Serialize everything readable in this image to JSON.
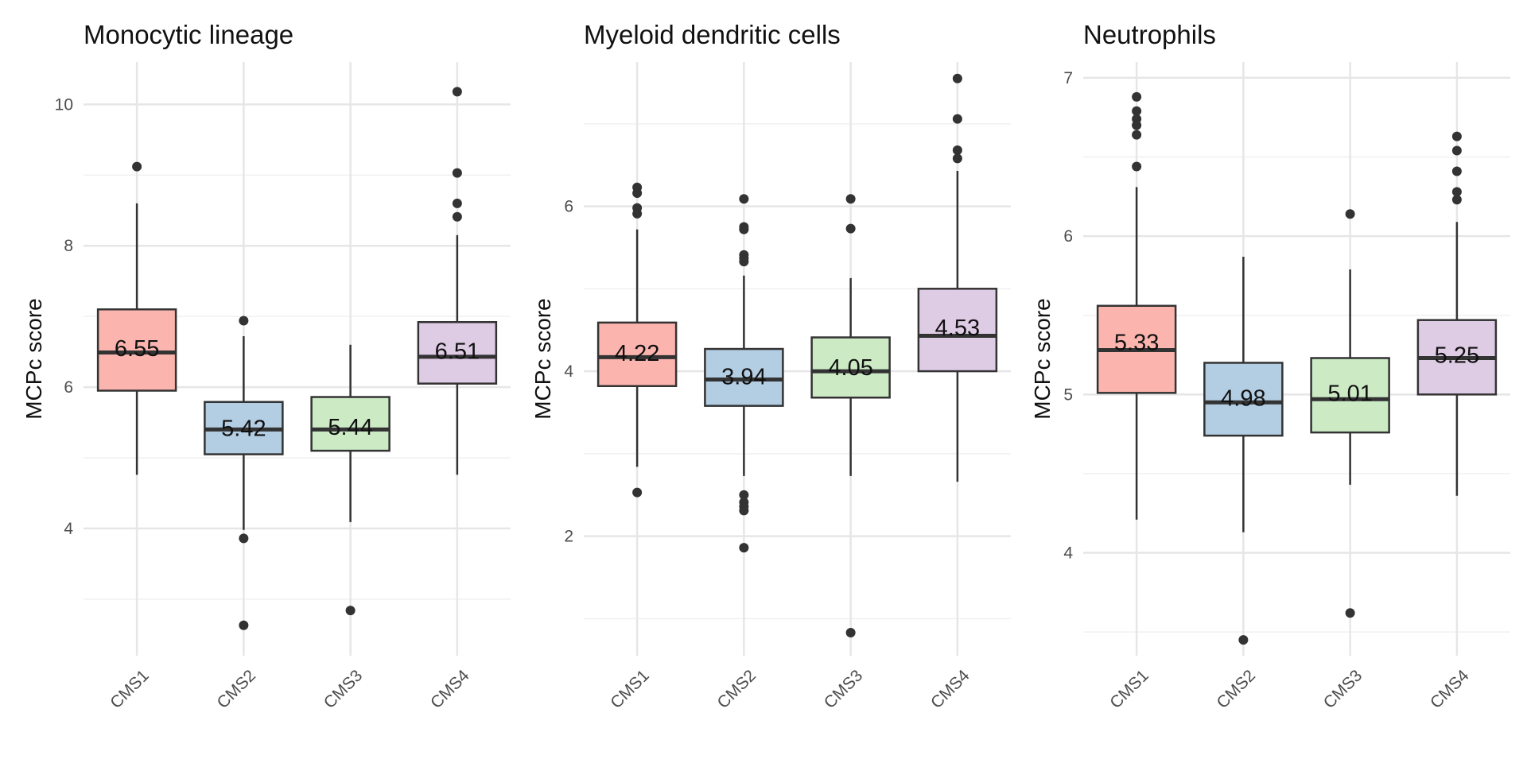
{
  "chart_data": [
    {
      "type": "box",
      "title": "Monocytic lineage",
      "ylabel": "MCPc score",
      "categories": [
        "CMS1",
        "CMS2",
        "CMS3",
        "CMS4"
      ],
      "ylim": [
        2.2,
        10.6
      ],
      "yticks": [
        4,
        6,
        8,
        10
      ],
      "boxes": [
        {
          "category": "CMS1",
          "color": "#FBB4AE",
          "label": "6.55",
          "label_y": 6.55,
          "q1": 5.95,
          "median": 6.49,
          "q3": 7.1,
          "whisker_low": 4.76,
          "whisker_high": 8.6,
          "outliers": [
            9.12
          ]
        },
        {
          "category": "CMS2",
          "color": "#B3CDE3",
          "label": "5.42",
          "label_y": 5.42,
          "q1": 5.05,
          "median": 5.4,
          "q3": 5.79,
          "whisker_low": 3.98,
          "whisker_high": 6.72,
          "outliers": [
            6.94,
            3.86,
            2.63
          ]
        },
        {
          "category": "CMS3",
          "color": "#CCEBC5",
          "label": "5.44",
          "label_y": 5.44,
          "q1": 5.1,
          "median": 5.4,
          "q3": 5.86,
          "whisker_low": 4.09,
          "whisker_high": 6.6,
          "outliers": [
            2.84
          ]
        },
        {
          "category": "CMS4",
          "color": "#DECBE4",
          "label": "6.51",
          "label_y": 6.51,
          "q1": 6.05,
          "median": 6.43,
          "q3": 6.92,
          "whisker_low": 4.76,
          "whisker_high": 8.15,
          "outliers": [
            10.18,
            9.03,
            8.6,
            8.41
          ]
        }
      ]
    },
    {
      "type": "box",
      "title": "Myeloid dendritic cells",
      "ylabel": "MCPc score",
      "categories": [
        "CMS1",
        "CMS2",
        "CMS3",
        "CMS4"
      ],
      "ylim": [
        0.55,
        7.75
      ],
      "yticks": [
        2,
        4,
        6
      ],
      "boxes": [
        {
          "category": "CMS1",
          "color": "#FBB4AE",
          "label": "4.22",
          "label_y": 4.22,
          "q1": 3.82,
          "median": 4.17,
          "q3": 4.59,
          "whisker_low": 2.84,
          "whisker_high": 5.72,
          "outliers": [
            6.23,
            6.16,
            5.98,
            5.91,
            2.53
          ]
        },
        {
          "category": "CMS2",
          "color": "#B3CDE3",
          "label": "3.94",
          "label_y": 3.94,
          "q1": 3.58,
          "median": 3.9,
          "q3": 4.27,
          "whisker_low": 2.73,
          "whisker_high": 5.16,
          "outliers": [
            6.09,
            5.75,
            5.72,
            5.41,
            5.37,
            5.33,
            2.5,
            2.41,
            2.36,
            2.31,
            1.86
          ]
        },
        {
          "category": "CMS3",
          "color": "#CCEBC5",
          "label": "4.05",
          "label_y": 4.05,
          "q1": 3.68,
          "median": 4.0,
          "q3": 4.41,
          "whisker_low": 2.73,
          "whisker_high": 5.13,
          "outliers": [
            6.09,
            5.73,
            0.83
          ]
        },
        {
          "category": "CMS4",
          "color": "#DECBE4",
          "label": "4.53",
          "label_y": 4.53,
          "q1": 4.0,
          "median": 4.43,
          "q3": 5.0,
          "whisker_low": 2.66,
          "whisker_high": 6.43,
          "outliers": [
            7.55,
            7.06,
            6.68,
            6.58
          ]
        }
      ]
    },
    {
      "type": "box",
      "title": "Neutrophils",
      "ylabel": "MCPc score",
      "categories": [
        "CMS1",
        "CMS2",
        "CMS3",
        "CMS4"
      ],
      "ylim": [
        3.35,
        7.1
      ],
      "yticks": [
        4,
        5,
        6,
        7
      ],
      "boxes": [
        {
          "category": "CMS1",
          "color": "#FBB4AE",
          "label": "5.33",
          "label_y": 5.33,
          "q1": 5.01,
          "median": 5.28,
          "q3": 5.56,
          "whisker_low": 4.21,
          "whisker_high": 6.31,
          "outliers": [
            6.88,
            6.79,
            6.74,
            6.7,
            6.64,
            6.44
          ]
        },
        {
          "category": "CMS2",
          "color": "#B3CDE3",
          "label": "4.98",
          "label_y": 4.98,
          "q1": 4.74,
          "median": 4.95,
          "q3": 5.2,
          "whisker_low": 4.13,
          "whisker_high": 5.87,
          "outliers": [
            3.45
          ]
        },
        {
          "category": "CMS3",
          "color": "#CCEBC5",
          "label": "5.01",
          "label_y": 5.01,
          "q1": 4.76,
          "median": 4.97,
          "q3": 5.23,
          "whisker_low": 4.43,
          "whisker_high": 5.79,
          "outliers": [
            6.14,
            3.62
          ]
        },
        {
          "category": "CMS4",
          "color": "#DECBE4",
          "label": "5.25",
          "label_y": 5.25,
          "q1": 5.0,
          "median": 5.23,
          "q3": 5.47,
          "whisker_low": 4.36,
          "whisker_high": 6.09,
          "outliers": [
            6.63,
            6.54,
            6.41,
            6.28,
            6.23
          ]
        }
      ]
    }
  ]
}
